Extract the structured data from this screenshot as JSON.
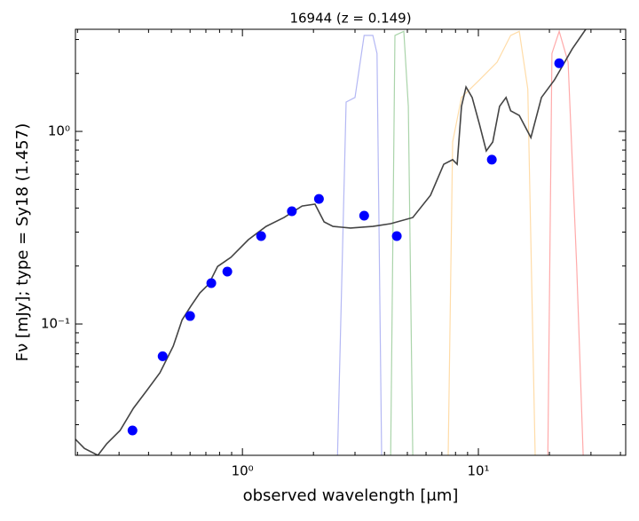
{
  "chart_data": {
    "type": "line",
    "title": "16944 (z = 0.149)",
    "x_label": "observed wavelength [μm]",
    "y_label": "Fν [mJy];  type = Sy18 (1.457)",
    "log_x": true,
    "log_y": true,
    "xlim": [
      0.196,
      42.1
    ],
    "ylim": [
      0.0208,
      3.39
    ],
    "xticks": [
      {
        "value": 1,
        "label": "10⁰"
      },
      {
        "value": 10,
        "label": "10¹"
      }
    ],
    "yticks": [
      {
        "value": 0.1,
        "label": "10⁻¹"
      },
      {
        "value": 1,
        "label": "10⁰"
      }
    ],
    "series": [
      {
        "kind": "filter",
        "color": "#b4b8f4",
        "x": [
          2.53,
          2.75,
          3.0,
          3.28,
          3.57,
          3.72,
          3.89
        ],
        "values": [
          0.0208,
          1.42,
          1.5,
          3.15,
          3.15,
          2.54,
          0.0208
        ]
      },
      {
        "kind": "filter",
        "color": "#aad4aa",
        "x": [
          4.25,
          4.43,
          4.83,
          5.05,
          5.27
        ],
        "values": [
          0.0208,
          3.15,
          3.31,
          1.35,
          0.0208
        ]
      },
      {
        "kind": "filter",
        "color": "#ffdca8",
        "x": [
          7.45,
          7.78,
          8.48,
          10.1,
          12.0,
          13.7,
          14.9,
          16.2,
          17.4
        ],
        "values": [
          0.0208,
          0.881,
          1.5,
          1.85,
          2.29,
          3.15,
          3.31,
          1.66,
          0.0208
        ]
      },
      {
        "kind": "filter",
        "color": "#ffaaaa",
        "x": [
          19.7,
          20.5,
          22.0,
          24.0,
          26.1,
          27.8
        ],
        "values": [
          0.0208,
          2.54,
          3.31,
          2.29,
          0.199,
          0.0208
        ]
      },
      {
        "kind": "model",
        "color": "#444444",
        "x": [
          0.196,
          0.214,
          0.244,
          0.266,
          0.303,
          0.345,
          0.393,
          0.447,
          0.509,
          0.555,
          0.605,
          0.66,
          0.72,
          0.785,
          0.894,
          1.06,
          1.26,
          1.5,
          1.79,
          2.03,
          2.22,
          2.42,
          2.87,
          3.57,
          4.25,
          5.27,
          6.27,
          7.13,
          7.78,
          8.13,
          8.48,
          8.86,
          9.41,
          10.1,
          10.8,
          11.5,
          12.3,
          13.1,
          13.7,
          14.9,
          16.7,
          18.5,
          21.0,
          25.0,
          28.5
        ],
        "values": [
          0.0252,
          0.0226,
          0.0208,
          0.0239,
          0.028,
          0.0365,
          0.0451,
          0.0558,
          0.0767,
          0.105,
          0.124,
          0.145,
          0.161,
          0.199,
          0.222,
          0.274,
          0.321,
          0.357,
          0.41,
          0.419,
          0.339,
          0.321,
          0.315,
          0.321,
          0.332,
          0.357,
          0.466,
          0.675,
          0.713,
          0.675,
          1.35,
          1.7,
          1.5,
          1.09,
          0.792,
          0.881,
          1.35,
          1.5,
          1.28,
          1.21,
          0.929,
          1.5,
          1.85,
          2.68,
          3.39
        ]
      },
      {
        "kind": "points",
        "color": "#0000ff",
        "x": [
          0.342,
          0.459,
          0.6,
          0.738,
          0.863,
          1.2,
          1.62,
          2.11,
          3.28,
          4.51,
          11.4,
          22.0
        ],
        "values": [
          0.028,
          0.068,
          0.11,
          0.163,
          0.187,
          0.286,
          0.385,
          0.446,
          0.365,
          0.286,
          0.713,
          2.26
        ]
      }
    ]
  }
}
